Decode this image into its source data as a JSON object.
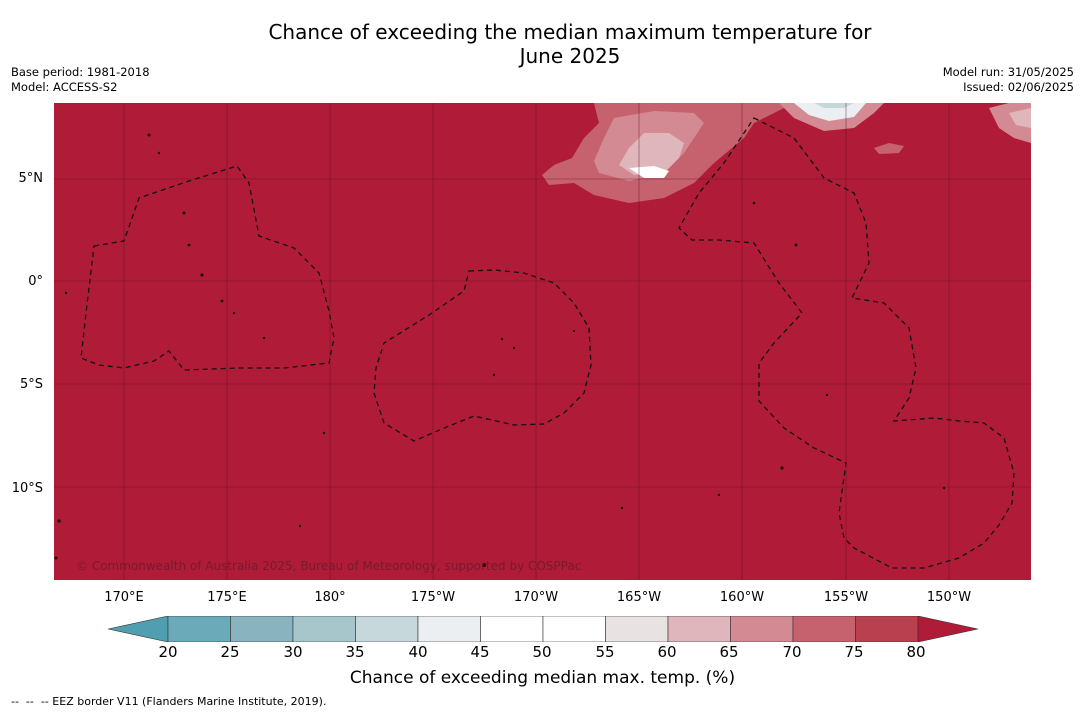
{
  "title_line1": "Chance of exceeding the median maximum temperature for",
  "title_line2": "June 2025",
  "base_period": "Base period: 1981-2018",
  "model": "Model: ACCESS-S2",
  "model_run": "Model run: 31/05/2025",
  "issued": "Issued: 02/06/2025",
  "copyright": "© Commonwealth of Australia 2025, Bureau of Meteorology, supported by COSPPac",
  "lat_labels": [
    "5°N",
    "0°",
    "5°S",
    "10°S"
  ],
  "lon_labels": [
    "170°E",
    "175°E",
    "180°",
    "175°W",
    "170°W",
    "165°W",
    "160°W",
    "155°W",
    "150°W"
  ],
  "colorbar": {
    "ticks": [
      "20",
      "25",
      "30",
      "35",
      "40",
      "45",
      "50",
      "55",
      "60",
      "65",
      "70",
      "75",
      "80"
    ],
    "colors": [
      "#4f9fb0",
      "#6aaab9",
      "#88b3bf",
      "#a7c6cc",
      "#c7d8dc",
      "#ebeff1",
      "#ffffff",
      "#ffffff",
      "#e8e2e3",
      "#dfb6bb",
      "#d48a93",
      "#c6626e",
      "#b9404f",
      "#b01c38"
    ],
    "label": "Chance of exceeding median max. temp. (%)"
  },
  "legend_note": "--  --  -- EEZ border V11 (Flanders Marine Institute, 2019).",
  "colors": {
    "dominant": "#b01c38",
    "grid": "#5a0f1c"
  }
}
